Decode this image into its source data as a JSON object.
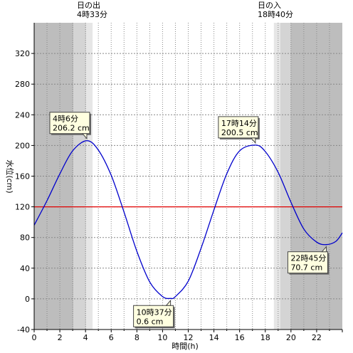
{
  "chart_data": {
    "type": "line",
    "xlabel": "時間(h)",
    "ylabel": "水位(cm)",
    "xlim": [
      0,
      24
    ],
    "ylim": [
      -40,
      360
    ],
    "x_ticks": [
      0,
      2,
      4,
      6,
      8,
      10,
      12,
      14,
      16,
      18,
      20,
      22
    ],
    "y_ticks": [
      -40,
      0,
      40,
      80,
      120,
      160,
      200,
      240,
      280,
      320
    ],
    "grid": true,
    "reference_line": {
      "y": 120,
      "color": "#e00000"
    },
    "line_color": "#0000cc",
    "sunrise": {
      "label": "日の出",
      "time": "4時33分",
      "hour": 4.55
    },
    "sunset": {
      "label": "日の入",
      "time": "18時40分",
      "hour": 18.667
    },
    "series": [
      {
        "x": [
          0,
          1,
          2,
          3,
          4.1,
          5,
          6,
          7,
          8,
          9,
          10,
          10.62,
          11,
          12,
          13,
          14,
          15,
          16,
          17.23,
          18,
          19,
          20,
          21,
          22,
          22.75,
          23.5,
          24
        ],
        "y": [
          96,
          128,
          163,
          193,
          206.2,
          194,
          161,
          113,
          62,
          22,
          3,
          0.6,
          3,
          23,
          66,
          116,
          163,
          193,
          200.5,
          192,
          165,
          126,
          91,
          74,
          70.7,
          75,
          86
        ]
      }
    ],
    "annotations": [
      {
        "time": "4時6分",
        "value": "206.2 cm",
        "x": 4.1,
        "y": 206.2
      },
      {
        "time": "10時37分",
        "value": "0.6 cm",
        "x": 10.62,
        "y": 0.6
      },
      {
        "time": "17時14分",
        "value": "200.5 cm",
        "x": 17.23,
        "y": 200.5
      },
      {
        "time": "22時45分",
        "value": "70.7 cm",
        "x": 22.75,
        "y": 70.7
      }
    ]
  }
}
